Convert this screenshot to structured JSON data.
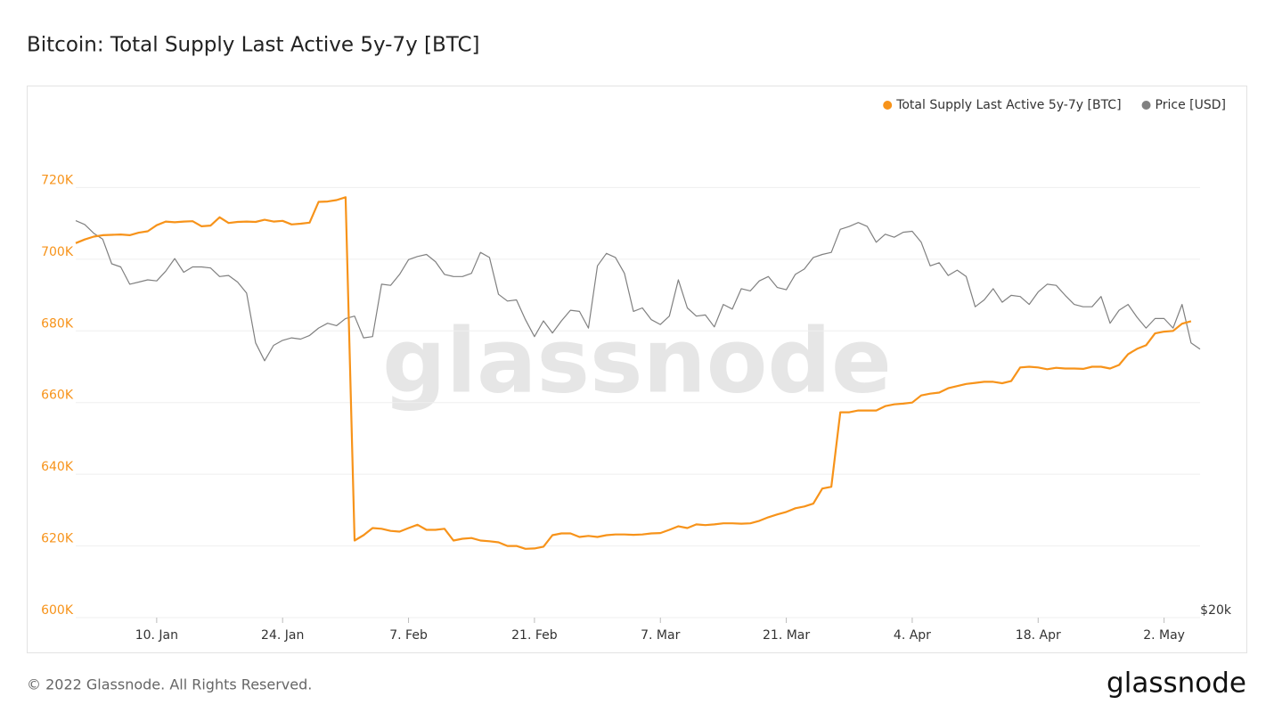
{
  "chart_data": {
    "type": "line",
    "title": "Bitcoin: Total Supply Last Active 5y-7y [BTC]",
    "footer": "© 2022 Glassnode. All Rights Reserved.",
    "logo": "glassnode",
    "watermark": "glassnode",
    "x": [
      "1. Jan",
      "2. Jan",
      "3. Jan",
      "4. Jan",
      "5. Jan",
      "6. Jan",
      "7. Jan",
      "8. Jan",
      "9. Jan",
      "10. Jan",
      "11. Jan",
      "12. Jan",
      "13. Jan",
      "14. Jan",
      "15. Jan",
      "16. Jan",
      "17. Jan",
      "18. Jan",
      "19. Jan",
      "20. Jan",
      "21. Jan",
      "22. Jan",
      "23. Jan",
      "24. Jan",
      "25. Jan",
      "26. Jan",
      "27. Jan",
      "28. Jan",
      "29. Jan",
      "30. Jan",
      "31. Jan",
      "1. Feb",
      "2. Feb",
      "3. Feb",
      "4. Feb",
      "5. Feb",
      "6. Feb",
      "7. Feb",
      "8. Feb",
      "9. Feb",
      "10. Feb",
      "11. Feb",
      "12. Feb",
      "13. Feb",
      "14. Feb",
      "15. Feb",
      "16. Feb",
      "17. Feb",
      "18. Feb",
      "19. Feb",
      "20. Feb",
      "21. Feb",
      "22. Feb",
      "23. Feb",
      "24. Feb",
      "25. Feb",
      "26. Feb",
      "27. Feb",
      "28. Feb",
      "1. Mar",
      "2. Mar",
      "3. Mar",
      "4. Mar",
      "5. Mar",
      "6. Mar",
      "7. Mar",
      "8. Mar",
      "9. Mar",
      "10. Mar",
      "11. Mar",
      "12. Mar",
      "13. Mar",
      "14. Mar",
      "15. Mar",
      "16. Mar",
      "17. Mar",
      "18. Mar",
      "19. Mar",
      "20. Mar",
      "21. Mar",
      "22. Mar",
      "23. Mar",
      "24. Mar",
      "25. Mar",
      "26. Mar",
      "27. Mar",
      "28. Mar",
      "29. Mar",
      "30. Mar",
      "31. Mar",
      "1. Apr",
      "2. Apr",
      "3. Apr",
      "4. Apr",
      "5. Apr",
      "6. Apr",
      "7. Apr",
      "8. Apr",
      "9. Apr",
      "10. Apr",
      "11. Apr",
      "12. Apr",
      "13. Apr",
      "14. Apr",
      "15. Apr",
      "16. Apr",
      "17. Apr",
      "18. Apr",
      "19. Apr",
      "20. Apr",
      "21. Apr",
      "22. Apr",
      "23. Apr",
      "24. Apr",
      "25. Apr",
      "26. Apr",
      "27. Apr",
      "28. Apr",
      "29. Apr",
      "30. Apr",
      "1. May",
      "2. May",
      "3. May",
      "4. May",
      "5. May",
      "6. May"
    ],
    "xticks": [
      "10. Jan",
      "24. Jan",
      "7. Feb",
      "21. Feb",
      "7. Mar",
      "21. Mar",
      "4. Apr",
      "18. Apr",
      "2. May"
    ],
    "ylim": [
      600000,
      740000
    ],
    "yticks": [
      {
        "value": 600000,
        "label": "600K"
      },
      {
        "value": 620000,
        "label": "620K"
      },
      {
        "value": 640000,
        "label": "640K"
      },
      {
        "value": 660000,
        "label": "660K"
      },
      {
        "value": 680000,
        "label": "680K"
      },
      {
        "value": 700000,
        "label": "700K"
      },
      {
        "value": 720000,
        "label": "720K"
      }
    ],
    "y2lim": [
      20000,
      60000
    ],
    "y2ticks": [
      {
        "value": 20000,
        "label": "$20k"
      }
    ],
    "y2scale": "log",
    "grid": true,
    "legend": "top-right",
    "series": [
      {
        "name": "Total Supply Last Active 5y-7y [BTC]",
        "color": "#f7931a",
        "values": [
          704500,
          705500,
          706300,
          706700,
          706800,
          706900,
          706700,
          707400,
          707800,
          709500,
          710500,
          710300,
          710500,
          710600,
          709200,
          709400,
          711700,
          710100,
          710400,
          710500,
          710400,
          711000,
          710500,
          710700,
          709700,
          709900,
          710200,
          716000,
          716100,
          716500,
          717300,
          621500,
          623000,
          625000,
          624800,
          624200,
          624000,
          625000,
          625900,
          624500,
          624500,
          624800,
          621500,
          622000,
          622200,
          621500,
          621300,
          621000,
          620000,
          620000,
          619200,
          619300,
          619800,
          623000,
          623500,
          623500,
          622500,
          622800,
          622500,
          623000,
          623200,
          623200,
          623100,
          623200,
          623500,
          623600,
          624500,
          625500,
          625000,
          626000,
          625800,
          626000,
          626300,
          626300,
          626200,
          626300,
          627000,
          628000,
          628800,
          629500,
          630500,
          631000,
          631800,
          636000,
          636500,
          657300,
          657300,
          657800,
          657800,
          657800,
          659000,
          659500,
          659700,
          660000,
          662000,
          662500,
          662800,
          664000,
          664600,
          665200,
          665500,
          665800,
          665800,
          665400,
          666000,
          669800,
          670000,
          669800,
          669300,
          669700,
          669500,
          669500,
          669400,
          670000,
          670000,
          669500,
          670500,
          673500,
          675000,
          676000,
          679300,
          679800,
          680000,
          682000,
          682700,
          null
        ]
      },
      {
        "name": "Price [USD]",
        "color": "#808080",
        "axis": "y2",
        "values": [
          47700,
          47300,
          46400,
          45800,
          43400,
          43100,
          41500,
          41700,
          41900,
          41800,
          42700,
          43900,
          42600,
          43100,
          43100,
          43000,
          42200,
          42300,
          41700,
          40700,
          36500,
          35100,
          36300,
          36700,
          36900,
          36800,
          37100,
          37700,
          38100,
          37900,
          38500,
          38700,
          36900,
          37000,
          41500,
          41400,
          42400,
          43800,
          44100,
          44300,
          43600,
          42400,
          42200,
          42200,
          42500,
          44500,
          44000,
          40600,
          40000,
          40100,
          38400,
          37000,
          38300,
          37300,
          38300,
          39200,
          39100,
          37700,
          43200,
          44400,
          44000,
          42500,
          39100,
          39400,
          38400,
          38000,
          38700,
          41900,
          39400,
          38700,
          38800,
          37800,
          39700,
          39300,
          41100,
          40900,
          41800,
          42200,
          41200,
          41000,
          42400,
          42900,
          44000,
          44300,
          44500,
          46800,
          47100,
          47500,
          47100,
          45500,
          46300,
          46000,
          46500,
          46600,
          45500,
          43200,
          43500,
          42300,
          42800,
          42200,
          39500,
          40100,
          41100,
          39900,
          40500,
          40400,
          39700,
          40800,
          41500,
          41400,
          40500,
          39700,
          39500,
          39500,
          40400,
          38100,
          39200,
          39700,
          38600,
          37700,
          38500,
          38500,
          37700,
          39700,
          36500,
          36000
        ]
      }
    ]
  }
}
